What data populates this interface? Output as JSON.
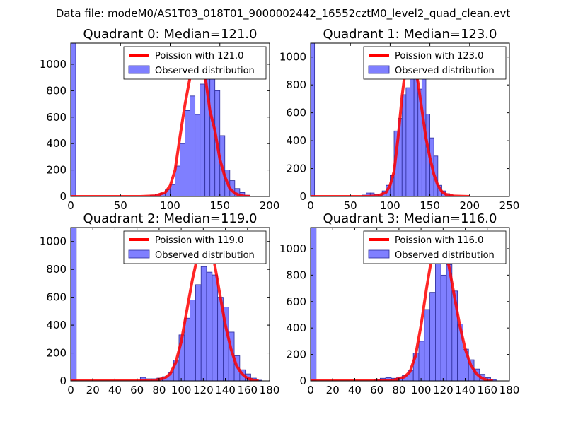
{
  "figure_title": "Data file: modeM0/AS1T03_018T01_9000002442_16552cztM0_level2_quad_clean.evt",
  "colors": {
    "bar_fill": "#7f7fff",
    "bar_stroke": "#2b2b99",
    "curve": "#ff0000"
  },
  "chart_data": [
    {
      "type": "bar",
      "title": "Quadrant 0: Median=121.0",
      "xlim": [
        0,
        200
      ],
      "ylim": [
        0,
        1160
      ],
      "xticks": [
        0,
        50,
        100,
        150,
        200
      ],
      "yticks": [
        0,
        200,
        400,
        600,
        800,
        1000
      ],
      "bin_width": 5,
      "bins": [
        [
          0,
          1160
        ],
        [
          70,
          3
        ],
        [
          75,
          4
        ],
        [
          80,
          10
        ],
        [
          85,
          18
        ],
        [
          90,
          25
        ],
        [
          95,
          50
        ],
        [
          100,
          90
        ],
        [
          105,
          230
        ],
        [
          110,
          400
        ],
        [
          115,
          650
        ],
        [
          120,
          760
        ],
        [
          125,
          620
        ],
        [
          130,
          850
        ],
        [
          135,
          890
        ],
        [
          140,
          1010
        ],
        [
          145,
          800
        ],
        [
          150,
          460
        ],
        [
          155,
          200
        ],
        [
          160,
          120
        ],
        [
          165,
          60
        ],
        [
          170,
          30
        ],
        [
          175,
          10
        ]
      ],
      "curve": [
        [
          0,
          0
        ],
        [
          70,
          0
        ],
        [
          85,
          5
        ],
        [
          95,
          30
        ],
        [
          100,
          80
        ],
        [
          105,
          200
        ],
        [
          110,
          460
        ],
        [
          115,
          700
        ],
        [
          120,
          900
        ],
        [
          125,
          1040
        ],
        [
          130,
          1000
        ],
        [
          135,
          920
        ],
        [
          140,
          650
        ],
        [
          145,
          500
        ],
        [
          150,
          280
        ],
        [
          155,
          150
        ],
        [
          160,
          60
        ],
        [
          165,
          25
        ],
        [
          170,
          8
        ],
        [
          175,
          2
        ],
        [
          180,
          0
        ]
      ],
      "legend": {
        "curve_label": "Poission with 121.0",
        "bars_label": "Observed distribution"
      }
    },
    {
      "type": "bar",
      "title": "Quadrant 1: Median=123.0",
      "xlim": [
        0,
        250
      ],
      "ylim": [
        0,
        1100
      ],
      "xticks": [
        0,
        50,
        100,
        150,
        200,
        250
      ],
      "yticks": [
        0,
        200,
        400,
        600,
        800,
        1000
      ],
      "bin_width": 5,
      "bins": [
        [
          0,
          1100
        ],
        [
          65,
          10
        ],
        [
          70,
          25
        ],
        [
          75,
          25
        ],
        [
          80,
          15
        ],
        [
          85,
          10
        ],
        [
          90,
          40
        ],
        [
          95,
          80
        ],
        [
          100,
          150
        ],
        [
          105,
          470
        ],
        [
          110,
          560
        ],
        [
          115,
          730
        ],
        [
          120,
          780
        ],
        [
          125,
          1010
        ],
        [
          130,
          900
        ],
        [
          135,
          770
        ],
        [
          140,
          860
        ],
        [
          145,
          590
        ],
        [
          150,
          420
        ],
        [
          155,
          290
        ],
        [
          160,
          80
        ],
        [
          165,
          40
        ],
        [
          170,
          20
        ],
        [
          175,
          10
        ]
      ],
      "curve": [
        [
          0,
          0
        ],
        [
          70,
          0
        ],
        [
          85,
          5
        ],
        [
          95,
          30
        ],
        [
          100,
          80
        ],
        [
          105,
          180
        ],
        [
          110,
          420
        ],
        [
          115,
          720
        ],
        [
          120,
          950
        ],
        [
          125,
          1050
        ],
        [
          130,
          980
        ],
        [
          135,
          820
        ],
        [
          140,
          620
        ],
        [
          145,
          420
        ],
        [
          150,
          280
        ],
        [
          155,
          160
        ],
        [
          160,
          80
        ],
        [
          165,
          35
        ],
        [
          170,
          15
        ],
        [
          180,
          3
        ],
        [
          200,
          0
        ]
      ],
      "legend": {
        "curve_label": "Poission with 123.0",
        "bars_label": "Observed distribution"
      }
    },
    {
      "type": "bar",
      "title": "Quadrant 2: Median=119.0",
      "xlim": [
        0,
        180
      ],
      "ylim": [
        0,
        1100
      ],
      "xticks": [
        0,
        20,
        40,
        60,
        80,
        100,
        120,
        140,
        160,
        180
      ],
      "yticks": [
        0,
        200,
        400,
        600,
        800,
        1000
      ],
      "bin_width": 5,
      "bins": [
        [
          0,
          1100
        ],
        [
          63,
          25
        ],
        [
          68,
          15
        ],
        [
          73,
          15
        ],
        [
          78,
          20
        ],
        [
          83,
          30
        ],
        [
          88,
          60
        ],
        [
          93,
          150
        ],
        [
          98,
          330
        ],
        [
          103,
          450
        ],
        [
          108,
          580
        ],
        [
          113,
          690
        ],
        [
          118,
          820
        ],
        [
          123,
          780
        ],
        [
          128,
          760
        ],
        [
          133,
          600
        ],
        [
          138,
          530
        ],
        [
          143,
          350
        ],
        [
          148,
          180
        ],
        [
          153,
          80
        ],
        [
          158,
          50
        ],
        [
          163,
          20
        ],
        [
          168,
          5
        ]
      ],
      "curve": [
        [
          0,
          0
        ],
        [
          60,
          0
        ],
        [
          75,
          3
        ],
        [
          85,
          20
        ],
        [
          90,
          50
        ],
        [
          95,
          130
        ],
        [
          100,
          280
        ],
        [
          105,
          500
        ],
        [
          110,
          720
        ],
        [
          115,
          900
        ],
        [
          120,
          1010
        ],
        [
          125,
          990
        ],
        [
          130,
          850
        ],
        [
          135,
          620
        ],
        [
          140,
          400
        ],
        [
          145,
          230
        ],
        [
          150,
          110
        ],
        [
          155,
          50
        ],
        [
          160,
          18
        ],
        [
          165,
          6
        ],
        [
          170,
          0
        ]
      ],
      "legend": {
        "curve_label": "Poission with 119.0",
        "bars_label": "Observed distribution"
      }
    },
    {
      "type": "bar",
      "title": "Quadrant 3: Median=116.0",
      "xlim": [
        0,
        180
      ],
      "ylim": [
        0,
        1160
      ],
      "xticks": [
        0,
        20,
        40,
        60,
        80,
        100,
        120,
        140,
        160,
        180
      ],
      "yticks": [
        0,
        200,
        400,
        600,
        800,
        1000
      ],
      "bin_width": 5,
      "bins": [
        [
          0,
          1160
        ],
        [
          58,
          10
        ],
        [
          63,
          20
        ],
        [
          68,
          25
        ],
        [
          73,
          20
        ],
        [
          78,
          30
        ],
        [
          83,
          40
        ],
        [
          88,
          80
        ],
        [
          93,
          210
        ],
        [
          98,
          300
        ],
        [
          103,
          540
        ],
        [
          108,
          670
        ],
        [
          113,
          900
        ],
        [
          118,
          800
        ],
        [
          123,
          880
        ],
        [
          128,
          680
        ],
        [
          133,
          430
        ],
        [
          138,
          240
        ],
        [
          143,
          160
        ],
        [
          148,
          90
        ],
        [
          153,
          50
        ],
        [
          158,
          25
        ],
        [
          163,
          10
        ]
      ],
      "curve": [
        [
          0,
          0
        ],
        [
          60,
          0
        ],
        [
          75,
          5
        ],
        [
          85,
          30
        ],
        [
          90,
          70
        ],
        [
          95,
          190
        ],
        [
          100,
          420
        ],
        [
          105,
          700
        ],
        [
          110,
          950
        ],
        [
          115,
          1060
        ],
        [
          120,
          1010
        ],
        [
          125,
          880
        ],
        [
          130,
          650
        ],
        [
          135,
          420
        ],
        [
          140,
          240
        ],
        [
          145,
          120
        ],
        [
          150,
          55
        ],
        [
          155,
          20
        ],
        [
          160,
          6
        ],
        [
          165,
          0
        ]
      ],
      "legend": {
        "curve_label": "Poission with 116.0",
        "bars_label": "Observed distribution"
      }
    }
  ]
}
